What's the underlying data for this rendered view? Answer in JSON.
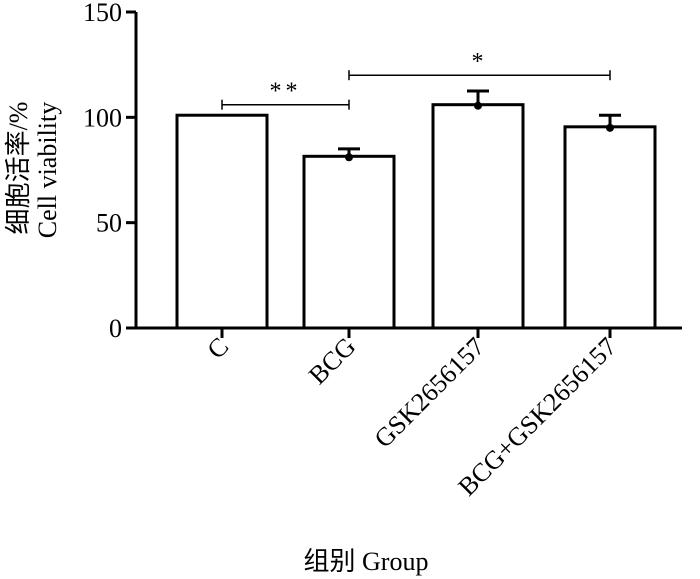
{
  "chart_data": {
    "type": "bar",
    "categories": [
      "C",
      "BCG",
      "GSK2656157",
      "BCG+GSK2656157"
    ],
    "values": [
      101,
      81.5,
      106,
      95.5
    ],
    "errors": [
      0,
      3.5,
      6.5,
      5.5
    ],
    "ylim": [
      0,
      150
    ],
    "yticks": [
      0,
      50,
      100,
      150
    ],
    "ylabel_cn": "细胞活率/%",
    "ylabel_en": "Cell viability",
    "xlabel": "组别  Group",
    "bar_fill": "#ffffff",
    "bar_stroke": "#000000",
    "significance": [
      {
        "from": 0,
        "to": 1,
        "label": "**",
        "y": 106
      },
      {
        "from": 1,
        "to": 3,
        "label": "*",
        "y": 120
      }
    ]
  }
}
